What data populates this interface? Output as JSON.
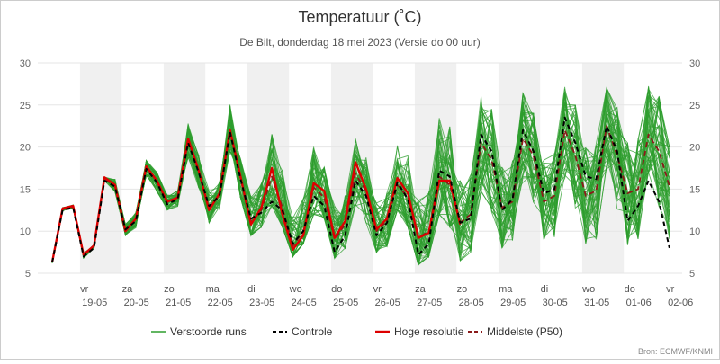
{
  "title": "Temperatuur (˚C)",
  "subtitle": "De Bilt, donderdag 18 mei 2023 (Versie do 00 uur)",
  "source": "Bron: ECMWF/KNMI",
  "chart_data": {
    "type": "line",
    "title": "Temperatuur (˚C)",
    "subtitle": "De Bilt, donderdag 18 mei 2023 (Versie do 00 uur)",
    "x_unit": "days since 18-05 00 uur",
    "xlim": [
      0,
      14.75
    ],
    "ylim": [
      5,
      30
    ],
    "yticks": [
      5,
      10,
      15,
      20,
      25,
      30
    ],
    "grid": true,
    "shaded_days": [
      1,
      3,
      5,
      7,
      9,
      11,
      13
    ],
    "day_labels": [
      {
        "day": 1,
        "weekday": "vr",
        "date": "19-05"
      },
      {
        "day": 2,
        "weekday": "za",
        "date": "20-05"
      },
      {
        "day": 3,
        "weekday": "zo",
        "date": "21-05"
      },
      {
        "day": 4,
        "weekday": "ma",
        "date": "22-05"
      },
      {
        "day": 5,
        "weekday": "di",
        "date": "23-05"
      },
      {
        "day": 6,
        "weekday": "wo",
        "date": "24-05"
      },
      {
        "day": 7,
        "weekday": "do",
        "date": "25-05"
      },
      {
        "day": 8,
        "weekday": "vr",
        "date": "26-05"
      },
      {
        "day": 9,
        "weekday": "za",
        "date": "27-05"
      },
      {
        "day": 10,
        "weekday": "zo",
        "date": "28-05"
      },
      {
        "day": 11,
        "weekday": "ma",
        "date": "29-05"
      },
      {
        "day": 12,
        "weekday": "di",
        "date": "30-05"
      },
      {
        "day": 13,
        "weekday": "wo",
        "date": "31-05"
      },
      {
        "day": 14,
        "weekday": "do",
        "date": "01-06"
      },
      {
        "day": 15,
        "weekday": "vr",
        "date": "02-06"
      }
    ],
    "legend_position": "bottom",
    "colors": {
      "ensemble": "#2e9e2e",
      "control": "#000000",
      "highres": "#dd0000",
      "median": "#8b1a1a",
      "shade": "#f0f0f0",
      "grid": "#e6e6e6"
    },
    "legend": [
      {
        "label": "Verstoorde runs",
        "key": "ensemble"
      },
      {
        "label": "Controle",
        "key": "control"
      },
      {
        "label": "Hoge resolutie",
        "key": "highres"
      },
      {
        "label": "Middelste (P50)",
        "key": "median"
      }
    ],
    "time_step_hours": 6,
    "series": [
      {
        "name": "Hoge resolutie",
        "key": "highres",
        "x": [
          0,
          0.25,
          0.5,
          0.75,
          1,
          1.25,
          1.5,
          1.75,
          2,
          2.25,
          2.5,
          2.75,
          3,
          3.25,
          3.5,
          3.75,
          4,
          4.25,
          4.5,
          4.75,
          5,
          5.25,
          5.5,
          5.75,
          6,
          6.25,
          6.5,
          6.75,
          7,
          7.25,
          7.5,
          7.75,
          8,
          8.25,
          8.5,
          8.75,
          9,
          9.25,
          9.5,
          9.75
        ],
        "values": [
          6.3,
          12.7,
          13.0,
          7.2,
          8.3,
          16.4,
          15.5,
          10.0,
          11.5,
          17.7,
          16.0,
          13.5,
          14.0,
          21.0,
          17.2,
          12.5,
          14.5,
          22.0,
          16.5,
          10.8,
          12.8,
          17.5,
          12.0,
          7.8,
          9.5,
          15.7,
          14.8,
          9.2,
          11.2,
          18.2,
          15.0,
          10.2,
          11.5,
          16.3,
          14.5,
          9.2,
          9.8,
          16.0,
          16.0,
          10.8
        ]
      },
      {
        "name": "Controle",
        "key": "control",
        "values": [
          6.3,
          12.5,
          12.8,
          7.0,
          8.0,
          16.0,
          15.3,
          10.2,
          11.2,
          17.4,
          15.8,
          13.2,
          13.8,
          20.5,
          17.0,
          13.0,
          14.2,
          21.8,
          16.2,
          11.5,
          12.2,
          13.5,
          12.5,
          8.5,
          10.0,
          14.2,
          13.0,
          7.5,
          9.5,
          16.0,
          14.2,
          9.5,
          11.0,
          15.8,
          13.8,
          7.2,
          8.5,
          17.2,
          16.5,
          11.0,
          11.5,
          21.5,
          19.5,
          12.5,
          13.8,
          22.0,
          19.5,
          14.5,
          15.0,
          23.5,
          20.5,
          16.5,
          16.2,
          22.5,
          19.5,
          11.2,
          13.0,
          16.0,
          13.5,
          8.0
        ]
      },
      {
        "name": "Middelste (P50)",
        "key": "median",
        "values": [
          6.3,
          12.6,
          12.9,
          7.1,
          8.2,
          16.2,
          15.4,
          10.1,
          11.4,
          17.6,
          15.9,
          13.4,
          13.9,
          20.8,
          17.1,
          12.8,
          14.3,
          21.9,
          16.3,
          11.2,
          12.5,
          16.5,
          12.8,
          8.2,
          10.0,
          15.2,
          14.0,
          9.0,
          10.8,
          16.8,
          14.8,
          10.0,
          11.2,
          15.5,
          14.0,
          9.2,
          10.0,
          16.5,
          15.5,
          11.0,
          12.0,
          20.5,
          18.5,
          12.8,
          13.5,
          21.0,
          19.0,
          13.5,
          14.2,
          22.0,
          19.0,
          14.2,
          14.8,
          22.5,
          19.0,
          14.5,
          15.0,
          21.5,
          19.5,
          15.3
        ]
      },
      {
        "name": "Verstoorde runs",
        "key": "ensemble",
        "count": 50,
        "envelope_low": [
          6.0,
          12.0,
          12.2,
          6.8,
          7.6,
          15.2,
          14.6,
          9.5,
          10.2,
          16.2,
          14.5,
          12.5,
          12.8,
          18.5,
          15.0,
          11.0,
          12.5,
          19.5,
          14.0,
          9.5,
          10.5,
          13.0,
          10.5,
          7.0,
          8.5,
          12.0,
          11.5,
          6.8,
          8.0,
          12.5,
          11.0,
          7.5,
          8.2,
          12.5,
          10.5,
          6.0,
          7.0,
          12.0,
          10.5,
          6.5,
          7.5,
          14.0,
          12.0,
          8.0,
          8.5,
          15.5,
          12.5,
          9.0,
          9.0,
          16.0,
          12.5,
          8.5,
          9.0,
          16.5,
          12.0,
          8.0,
          8.5,
          17.0,
          12.5,
          7.5
        ],
        "envelope_high": [
          6.6,
          13.3,
          13.5,
          8.5,
          9.0,
          16.6,
          16.2,
          11.0,
          12.2,
          18.4,
          17.0,
          14.5,
          14.8,
          22.8,
          19.0,
          15.0,
          16.0,
          25.8,
          19.5,
          15.5,
          17.0,
          24.0,
          19.5,
          14.5,
          16.5,
          22.0,
          19.0,
          15.0,
          15.5,
          21.0,
          19.0,
          14.5,
          15.5,
          23.0,
          20.5,
          15.5,
          16.5,
          27.0,
          24.5,
          16.5,
          17.5,
          26.0,
          24.5,
          18.5,
          18.5,
          26.5,
          24.0,
          19.0,
          19.5,
          27.5,
          25.0,
          20.0,
          20.5,
          27.0,
          25.0,
          20.5,
          21.0,
          29.2,
          26.0,
          20.0
        ]
      }
    ]
  }
}
